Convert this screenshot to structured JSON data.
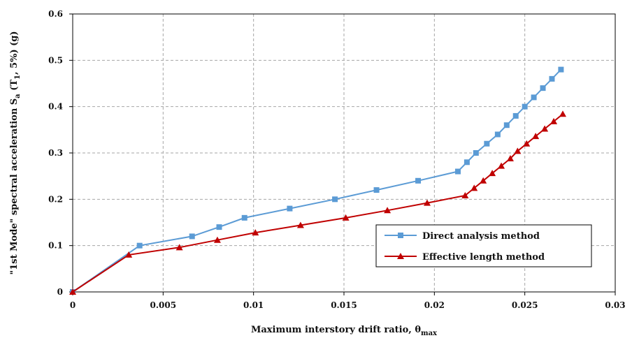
{
  "chart_data": {
    "type": "line",
    "title": "",
    "xlabel_main": "Maximum interstory drift ratio, θ",
    "xlabel_sub": "max",
    "ylabel_main": "\"1st Mode\" spectral acceleration S",
    "ylabel_sub_a": "a",
    "ylabel_mid": " (T",
    "ylabel_sub_1": "1",
    "ylabel_end": ", 5%) (g)",
    "xlim": [
      0,
      0.03
    ],
    "ylim": [
      0,
      0.6
    ],
    "x_ticks": [
      0,
      0.005,
      0.01,
      0.015,
      0.02,
      0.025,
      0.03
    ],
    "x_tick_labels": [
      "0",
      "0.005",
      "0.01",
      "0.015",
      "0.02",
      "0.025",
      "0.03"
    ],
    "y_ticks": [
      0,
      0.1,
      0.2,
      0.3,
      0.4,
      0.5,
      0.6
    ],
    "y_tick_labels": [
      "0",
      "0.1",
      "0.2",
      "0.3",
      "0.4",
      "0.5",
      "0.6"
    ],
    "grid": true,
    "legend_position": "right-center",
    "series": [
      {
        "name": "Direct analysis method",
        "color": "#5b9bd5",
        "marker": "square",
        "x": [
          0,
          0.0037,
          0.0066,
          0.0081,
          0.0095,
          0.012,
          0.0145,
          0.0168,
          0.0191,
          0.0213,
          0.0218,
          0.0223,
          0.0229,
          0.0235,
          0.024,
          0.0245,
          0.025,
          0.0255,
          0.026,
          0.0265,
          0.027
        ],
        "values": [
          0,
          0.1,
          0.12,
          0.14,
          0.16,
          0.18,
          0.2,
          0.22,
          0.24,
          0.26,
          0.28,
          0.3,
          0.32,
          0.34,
          0.36,
          0.38,
          0.4,
          0.42,
          0.44,
          0.46,
          0.48
        ]
      },
      {
        "name": "Effective length method",
        "color": "#c00000",
        "marker": "triangle",
        "x": [
          0,
          0.0031,
          0.0059,
          0.008,
          0.0101,
          0.0126,
          0.0151,
          0.0174,
          0.0196,
          0.0217,
          0.0222,
          0.0227,
          0.0232,
          0.0237,
          0.0242,
          0.0246,
          0.0251,
          0.0256,
          0.0261,
          0.0266,
          0.0271
        ],
        "values": [
          0,
          0.08,
          0.096,
          0.112,
          0.128,
          0.144,
          0.16,
          0.176,
          0.192,
          0.208,
          0.224,
          0.24,
          0.256,
          0.272,
          0.288,
          0.304,
          0.32,
          0.336,
          0.352,
          0.368,
          0.384
        ]
      }
    ]
  }
}
